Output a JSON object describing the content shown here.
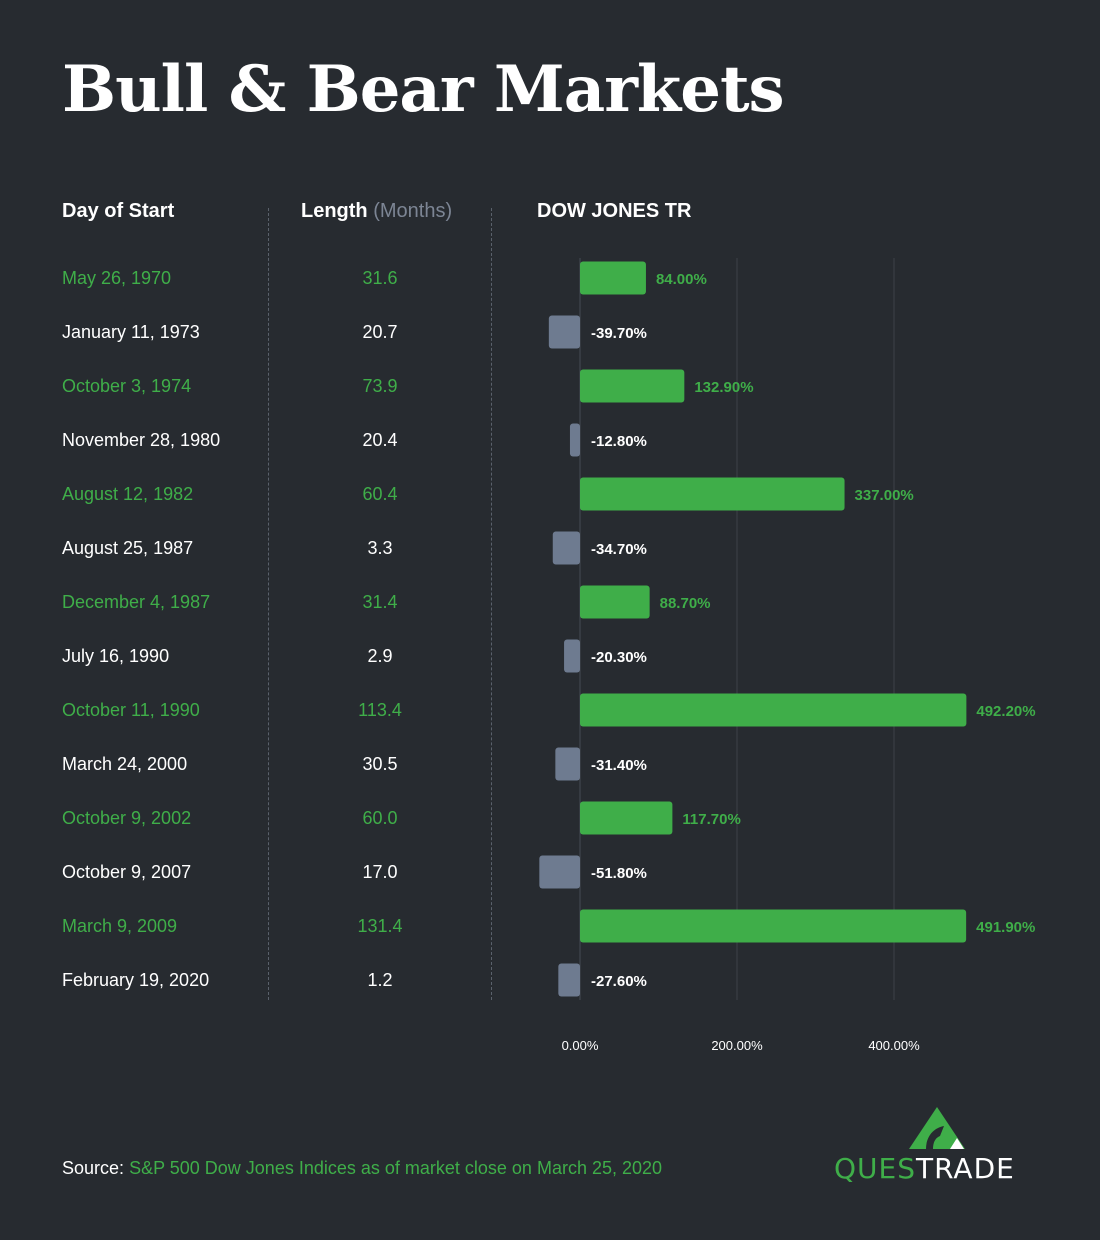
{
  "title": "Bull & Bear Markets",
  "columns": {
    "day_of_start": "Day of Start",
    "length": "Length",
    "length_unit": "(Months)",
    "index": "DOW JONES TR"
  },
  "colors": {
    "bull": "#3fae49",
    "bear": "#6e7b90",
    "background": "#272b30"
  },
  "chart_data": {
    "type": "bar",
    "orientation": "horizontal",
    "title": "DOW JONES TR",
    "categories": [
      "May 26, 1970",
      "January 11, 1973",
      "October 3, 1974",
      "November 28, 1980",
      "August 12, 1982",
      "August 25, 1987",
      "December 4, 1987",
      "July 16, 1990",
      "October 11, 1990",
      "March 24, 2000",
      "October 9, 2002",
      "October 9, 2007",
      "March 9, 2009",
      "February 19, 2020"
    ],
    "lengths": [
      "31.6",
      "20.7",
      "73.9",
      "20.4",
      "60.4",
      "3.3",
      "31.4",
      "2.9",
      "113.4",
      "30.5",
      "60.0",
      "17.0",
      "131.4",
      "1.2"
    ],
    "values": [
      84.0,
      -39.7,
      132.9,
      -12.8,
      337.0,
      -34.7,
      88.7,
      -20.3,
      492.2,
      -31.4,
      117.7,
      -51.8,
      491.9,
      -27.6
    ],
    "data_labels": [
      "84.00%",
      "-39.70%",
      "132.90%",
      "-12.80%",
      "337.00%",
      "-34.70%",
      "88.70%",
      "-20.30%",
      "492.20%",
      "-31.40%",
      "117.70%",
      "-51.80%",
      "491.90%",
      "-27.60%"
    ],
    "market_type": [
      "bull",
      "bear",
      "bull",
      "bear",
      "bull",
      "bear",
      "bull",
      "bear",
      "bull",
      "bear",
      "bull",
      "bear",
      "bull",
      "bear"
    ],
    "xticks": [
      0,
      200,
      400
    ],
    "xtick_labels": [
      "0.00%",
      "200.00%",
      "400.00%"
    ],
    "xlim": [
      -60,
      560
    ],
    "grid": true
  },
  "source": {
    "label": "Source:",
    "text": "S&P 500 Dow Jones Indices as of market close on March 25, 2020"
  },
  "logo": {
    "text_green": "QUES",
    "text_white": "TRADE"
  }
}
